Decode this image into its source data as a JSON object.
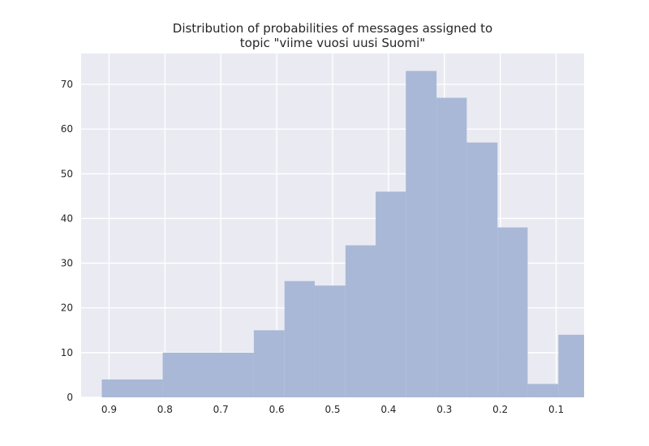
{
  "chart_data": {
    "type": "bar",
    "title_lines": [
      "Distribution of probabilities of messages assigned to",
      "topic \"viime vuosi uusi Suomi\""
    ],
    "xlabel": "",
    "ylabel": "",
    "x_axis_inverted": true,
    "xlim": [
      0.95,
      0.05
    ],
    "ylim": [
      0,
      76.9
    ],
    "x_ticks": [
      0.9,
      0.8,
      0.7,
      0.6,
      0.5,
      0.4,
      0.3,
      0.2,
      0.1
    ],
    "x_tick_labels": [
      "0.9",
      "0.8",
      "0.7",
      "0.6",
      "0.5",
      "0.4",
      "0.3",
      "0.2",
      "0.1"
    ],
    "y_ticks": [
      0,
      10,
      20,
      30,
      40,
      50,
      60,
      70
    ],
    "y_tick_labels": [
      "0",
      "10",
      "20",
      "30",
      "40",
      "50",
      "60",
      "70"
    ],
    "bins": [
      {
        "high": 0.913,
        "low": 0.804,
        "count": 4
      },
      {
        "high": 0.804,
        "low": 0.641,
        "count": 10
      },
      {
        "high": 0.641,
        "low": 0.586,
        "count": 15
      },
      {
        "high": 0.586,
        "low": 0.532,
        "count": 26
      },
      {
        "high": 0.532,
        "low": 0.477,
        "count": 25
      },
      {
        "high": 0.477,
        "low": 0.423,
        "count": 34
      },
      {
        "high": 0.423,
        "low": 0.369,
        "count": 46
      },
      {
        "high": 0.369,
        "low": 0.314,
        "count": 73
      },
      {
        "high": 0.314,
        "low": 0.26,
        "count": 67
      },
      {
        "high": 0.26,
        "low": 0.205,
        "count": 57
      },
      {
        "high": 0.205,
        "low": 0.151,
        "count": 38
      },
      {
        "high": 0.151,
        "low": 0.096,
        "count": 3
      },
      {
        "high": 0.096,
        "low": 0.05,
        "count": 14
      }
    ],
    "grid": true,
    "colors": {
      "bar": "#a9b8d6",
      "plot_background": "#eaeaf2",
      "grid": "#ffffff",
      "text": "#262626"
    }
  }
}
